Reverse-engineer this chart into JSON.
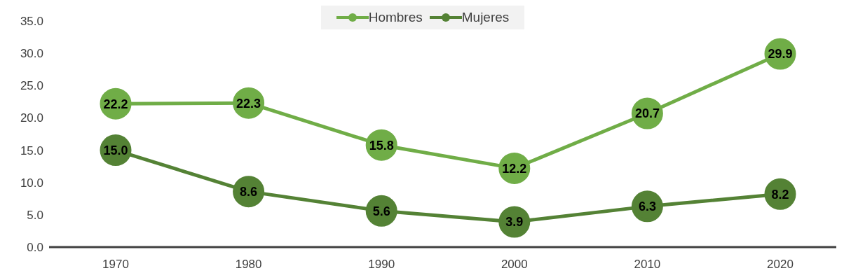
{
  "chart_data": {
    "type": "line",
    "categories": [
      "1970",
      "1980",
      "1990",
      "2000",
      "2010",
      "2020"
    ],
    "series": [
      {
        "name": "Hombres",
        "color": "#70ad47",
        "values": [
          22.2,
          22.3,
          15.8,
          12.2,
          20.7,
          29.9
        ],
        "value_labels": [
          "22.2",
          "22.3",
          "15.8",
          "12.2",
          "20.7",
          "29.9"
        ]
      },
      {
        "name": "Mujeres",
        "color": "#548235",
        "values": [
          15.0,
          8.6,
          5.6,
          3.9,
          6.3,
          8.2
        ],
        "value_labels": [
          "15.0",
          "8.6",
          "5.6",
          "3.9",
          "6.3",
          "8.2"
        ]
      }
    ],
    "ylim": [
      0,
      35
    ],
    "yticks": [
      {
        "value": 0,
        "label": "0.0"
      },
      {
        "value": 5,
        "label": "5.0"
      },
      {
        "value": 10,
        "label": "10.0"
      },
      {
        "value": 15,
        "label": "15.0"
      },
      {
        "value": 20,
        "label": "20.0"
      },
      {
        "value": 25,
        "label": "25.0"
      },
      {
        "value": 30,
        "label": "30.0"
      },
      {
        "value": 35,
        "label": "35.0"
      }
    ],
    "grid": false,
    "legend": "top",
    "marker": "circle",
    "line_style": "solid"
  }
}
